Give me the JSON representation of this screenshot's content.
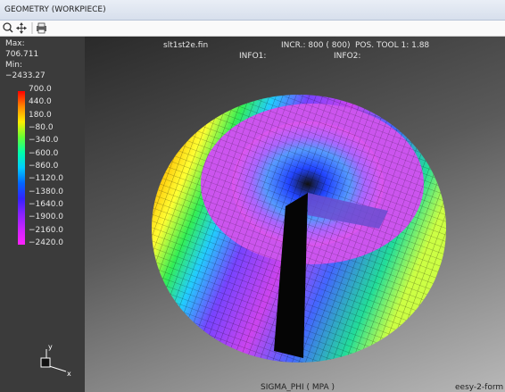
{
  "window": {
    "title": "GEOMETRY  (WORKPIECE)"
  },
  "info_panel": {
    "max_label": "Max:",
    "max_value": "706.711",
    "min_label": "Min:",
    "min_value": "−2433.27",
    "legend_labels": [
      "700.0",
      "440.0",
      "180.0",
      "−80.0",
      "−340.0",
      "−600.0",
      "−860.0",
      "−1120.0",
      "−1380.0",
      "−1640.0",
      "−1900.0",
      "−2160.0",
      "−2420.0"
    ]
  },
  "viewport": {
    "file": "slt1st2e.fin",
    "increment": "INCR.: 800 ( 800)",
    "tool_position": "POS. TOOL  1:  1.88",
    "info1": "INFO1:",
    "info2": "INFO2:",
    "variable": "SIGMA_PHI ( MPA )",
    "software": "eesy-2-form",
    "axis_y": "y",
    "axis_x": "x"
  }
}
